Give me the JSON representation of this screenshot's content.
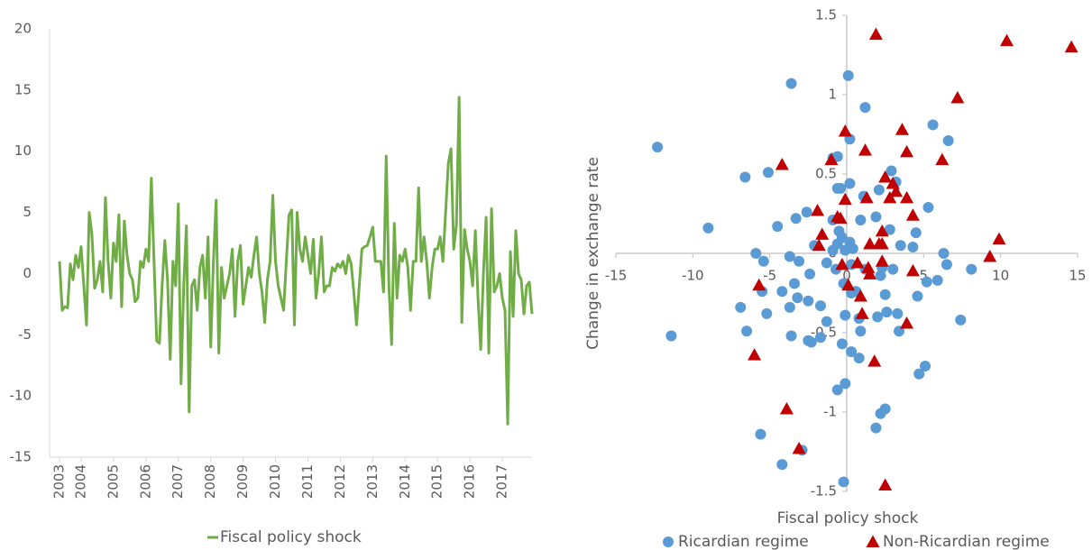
{
  "chart_data": [
    {
      "type": "line",
      "categories": [
        "2003",
        null,
        null,
        null,
        null,
        null,
        null,
        null,
        "2004",
        null,
        null,
        null,
        null,
        null,
        null,
        null,
        null,
        null,
        null,
        null,
        "2005",
        null,
        null,
        null,
        null,
        null,
        null,
        null,
        null,
        null,
        null,
        null,
        "2006",
        null,
        null,
        null,
        null,
        null,
        null,
        null,
        null,
        null,
        null,
        null,
        "2007",
        null,
        null,
        null,
        null,
        null,
        null,
        null,
        null,
        null,
        null,
        null,
        "2008",
        null,
        null,
        null,
        null,
        null,
        null,
        null,
        null,
        null,
        null,
        null,
        "2009",
        null,
        null,
        null,
        null,
        null,
        null,
        null,
        null,
        null,
        null,
        null,
        "2010",
        null,
        null,
        null,
        null,
        null,
        null,
        null,
        null,
        null,
        null,
        null,
        "2011",
        null,
        null,
        null,
        null,
        null,
        null,
        null,
        null,
        null,
        null,
        null,
        "2012",
        null,
        null,
        null,
        null,
        null,
        null,
        null,
        null,
        null,
        null,
        null,
        "2013",
        null,
        null,
        null,
        null,
        null,
        null,
        null,
        null,
        null,
        null,
        null,
        "2014",
        null,
        null,
        null,
        null,
        null,
        null,
        null,
        null,
        null,
        null,
        null,
        "2015",
        null,
        null,
        null,
        null,
        null,
        null,
        null,
        null,
        null,
        null,
        null,
        "2016",
        null,
        null,
        null,
        null,
        null,
        null,
        null,
        null,
        null,
        null,
        null,
        "2017",
        null,
        null,
        null,
        null,
        null,
        null,
        null,
        null,
        null,
        null,
        null
      ],
      "series": [
        {
          "name": "Fiscal policy shock",
          "color": "#70ad47",
          "values": [
            1,
            -3,
            -2.7,
            -2.8,
            0.8,
            -0.5,
            1.5,
            0.5,
            2.2,
            -1,
            -4.2,
            5,
            3.2,
            -1.2,
            -0.5,
            1,
            -1.5,
            6.2,
            1,
            -2,
            2.5,
            1,
            4.8,
            -2.7,
            4.3,
            1.5,
            0,
            -0.5,
            -2.3,
            -2,
            1,
            0.5,
            2,
            1,
            7.8,
            1,
            -5.5,
            -5.7,
            -1,
            2.7,
            -0.5,
            -7,
            1,
            -1,
            5.7,
            -9,
            -1,
            3.9,
            -11.3,
            -1,
            -0.5,
            -3,
            0.5,
            1.5,
            -2,
            3,
            -6,
            1,
            6,
            -6.5,
            0.5,
            -2,
            -1,
            0,
            2,
            -3.5,
            1,
            2.3,
            -2.5,
            -1,
            0.5,
            -0.3,
            1.5,
            3,
            0,
            -1.5,
            -4,
            -0.5,
            1,
            6.4,
            1,
            -1,
            -2,
            -3,
            1,
            4.8,
            5.2,
            -4.2,
            5,
            2,
            1,
            3,
            1.5,
            0,
            2.8,
            -2,
            0,
            3,
            -1.5,
            -1,
            -1,
            0.5,
            0.2,
            0.8,
            0.5,
            1,
            0,
            1.5,
            0.8,
            -1.5,
            -4.2,
            -1,
            2,
            2.2,
            2.3,
            3,
            3.8,
            1,
            1,
            1,
            -1.5,
            9.6,
            -1,
            -5.8,
            4.1,
            -2,
            1.5,
            1,
            2,
            0.5,
            -3,
            1,
            1,
            7,
            1,
            3,
            1,
            -2,
            0.5,
            2,
            2,
            3,
            1,
            5,
            9,
            10.2,
            2,
            4,
            14.4,
            -4,
            3.6,
            2,
            1,
            -1,
            3.5,
            -2,
            -6.2,
            0,
            4.6,
            -6.5,
            5.3,
            -1.5,
            -1,
            0,
            -2,
            -3,
            -12.3,
            1.8,
            -3.5,
            3.5,
            0,
            -0.5,
            -3.3,
            -1,
            -0.7,
            -3.3
          ]
        }
      ],
      "ylim": [
        -15,
        20
      ],
      "yticks": [
        -15,
        -10,
        -5,
        0,
        5,
        10,
        15,
        20
      ],
      "grid": false,
      "legend": "bottom"
    },
    {
      "type": "scatter",
      "x_label": "Fiscal policy shock",
      "y_label": "Change in exchange rate",
      "series": [
        {
          "name": "Ricardian regime",
          "color": "#5b9bd5",
          "marker": "circle",
          "x": [
            -12.3,
            -3.6,
            0.1,
            1.2,
            -9.0,
            -6.6,
            -5.1,
            -11.4,
            5.6,
            6.6,
            0.2,
            -0.9,
            -0.6,
            2.9,
            3.2,
            0.2,
            -0.6,
            -0.4,
            1.1,
            2.1,
            5.3,
            -2.6,
            -3.3,
            -4.5,
            -0.9,
            0.9,
            1.9,
            2.8,
            4.5,
            -0.5,
            -0.3,
            0.2,
            0.4,
            -0.1,
            -0.6,
            -0.9,
            -2.1,
            -5.9,
            -3.7,
            -5.4,
            -3.1,
            -1.3,
            0.3,
            -0.7,
            1.2,
            2.3,
            3.5,
            4.3,
            6.3,
            6.5,
            3.0,
            8.1,
            -3.4,
            -2.4,
            -0.2,
            2.2,
            5.9,
            5.2,
            -5.5,
            -4.2,
            -3.2,
            -2.5,
            0.3,
            0.6,
            2.5,
            4.6,
            -6.9,
            -3.7,
            -1.7,
            -5.2,
            -0.1,
            2.0,
            2.6,
            3.3,
            3.4,
            -1.3,
            0.8,
            7.4,
            -6.5,
            -3.6,
            -2.3,
            -1.7,
            0.9,
            -0.3,
            -2.5,
            0.3,
            0.8,
            5.1,
            4.7,
            -0.1,
            -0.6,
            2.5,
            2.2,
            1.9,
            -5.6,
            -2.9,
            -4.2,
            -0.2
          ],
          "y": [
            0.67,
            1.07,
            1.12,
            0.92,
            0.16,
            0.48,
            0.51,
            -0.52,
            0.81,
            0.71,
            0.72,
            0.6,
            0.61,
            0.52,
            0.45,
            0.44,
            0.41,
            0.41,
            0.36,
            0.4,
            0.29,
            0.26,
            0.22,
            0.17,
            0.21,
            0.21,
            0.23,
            0.15,
            0.13,
            0.14,
            0.1,
            0.07,
            0.03,
            0.02,
            0.06,
            0.02,
            0.05,
            0,
            -0.02,
            -0.05,
            -0.05,
            -0.06,
            -0.07,
            -0.1,
            -0.1,
            -0.09,
            0.05,
            0.04,
            0,
            -0.07,
            -0.1,
            -0.1,
            -0.19,
            -0.13,
            -0.19,
            -0.14,
            -0.17,
            -0.18,
            -0.24,
            -0.24,
            -0.28,
            -0.3,
            -0.25,
            -0.24,
            -0.26,
            -0.27,
            -0.34,
            -0.34,
            -0.33,
            -0.38,
            -0.39,
            -0.4,
            -0.37,
            -0.38,
            -0.49,
            -0.43,
            -0.41,
            -0.42,
            -0.49,
            -0.52,
            -0.56,
            -0.53,
            -0.49,
            -0.57,
            -0.55,
            -0.62,
            -0.66,
            -0.71,
            -0.76,
            -0.82,
            -0.86,
            -0.98,
            -1.01,
            -1.1,
            -1.14,
            -1.24,
            -1.33,
            -1.44
          ]
        },
        {
          "name": "Non-Ricardian regime",
          "color": "#c00000",
          "marker": "triangle",
          "x": [
            1.9,
            10.4,
            14.6,
            7.2,
            3.6,
            -0.1,
            1.2,
            3.9,
            6.2,
            -4.2,
            -1.0,
            2.5,
            3.0,
            3.2,
            3.9,
            1.3,
            2.8,
            -0.1,
            -1.9,
            4.3,
            -0.6,
            -0.4,
            -1.6,
            2.3,
            9.9,
            -1.8,
            1.5,
            2.1,
            2.3,
            9.3,
            -0.3,
            0.7,
            1.4,
            2.3,
            4.3,
            1.5,
            -5.7,
            0.1,
            0.9,
            1.0,
            3.9,
            -6.0,
            1.8,
            -3.9,
            -3.1,
            2.5
          ],
          "y": [
            1.38,
            1.34,
            1.3,
            0.98,
            0.78,
            0.77,
            0.65,
            0.64,
            0.59,
            0.56,
            0.59,
            0.48,
            0.44,
            0.39,
            0.35,
            0.35,
            0.35,
            0.34,
            0.27,
            0.24,
            0.23,
            0.22,
            0.12,
            0.14,
            0.09,
            0.05,
            0.06,
            0.06,
            0.06,
            -0.02,
            -0.07,
            -0.06,
            -0.09,
            -0.05,
            -0.11,
            -0.13,
            -0.2,
            -0.2,
            -0.27,
            -0.38,
            -0.44,
            -0.64,
            -0.68,
            -0.98,
            -1.23,
            -1.46
          ]
        }
      ],
      "xlim": [
        -15,
        15
      ],
      "xticks": [
        -15,
        -10,
        -5,
        0,
        5,
        10,
        15
      ],
      "ylim": [
        -1.5,
        1.5
      ],
      "yticks": [
        -1.5,
        -1,
        -0.5,
        0,
        0.5,
        1,
        1.5
      ],
      "grid": false,
      "legend": "bottom"
    }
  ]
}
